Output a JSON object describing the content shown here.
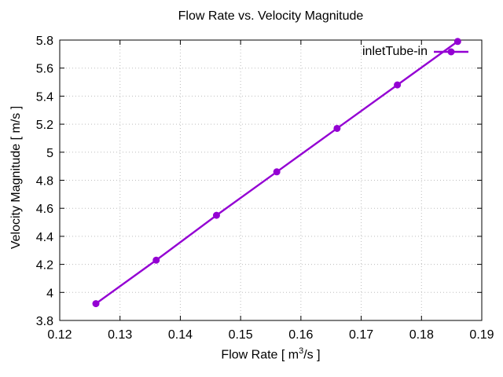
{
  "chart_data": {
    "type": "line",
    "title": "Flow Rate vs. Velocity Magnitude",
    "xlabel": "Flow Rate [ m³/s ]",
    "xlabel_parts": {
      "prefix": "Flow Rate [ m",
      "sup": "3",
      "suffix": "/s ]"
    },
    "ylabel": "Velocity Magnitude [ m/s ]",
    "xlim": [
      0.12,
      0.19
    ],
    "ylim": [
      3.8,
      5.8
    ],
    "xtick_labels": [
      "0.12",
      "0.13",
      "0.14",
      "0.15",
      "0.16",
      "0.17",
      "0.18",
      "0.19"
    ],
    "ytick_labels": [
      "3.8",
      "4",
      "4.2",
      "4.4",
      "4.6",
      "4.8",
      "5",
      "5.2",
      "5.4",
      "5.6",
      "5.8"
    ],
    "grid": true,
    "grid_style": "dotted",
    "grid_color": "#bdbdbd",
    "axis_color": "#000000",
    "background_color": "#ffffff",
    "legend": {
      "position": "top-right"
    },
    "series": [
      {
        "name": "inletTube-in",
        "color": "#9400D3",
        "marker": "filled-circle",
        "x": [
          0.126,
          0.136,
          0.146,
          0.156,
          0.166,
          0.176,
          0.186
        ],
        "y": [
          3.92,
          4.23,
          4.55,
          4.86,
          5.17,
          5.48,
          5.79
        ]
      }
    ]
  }
}
